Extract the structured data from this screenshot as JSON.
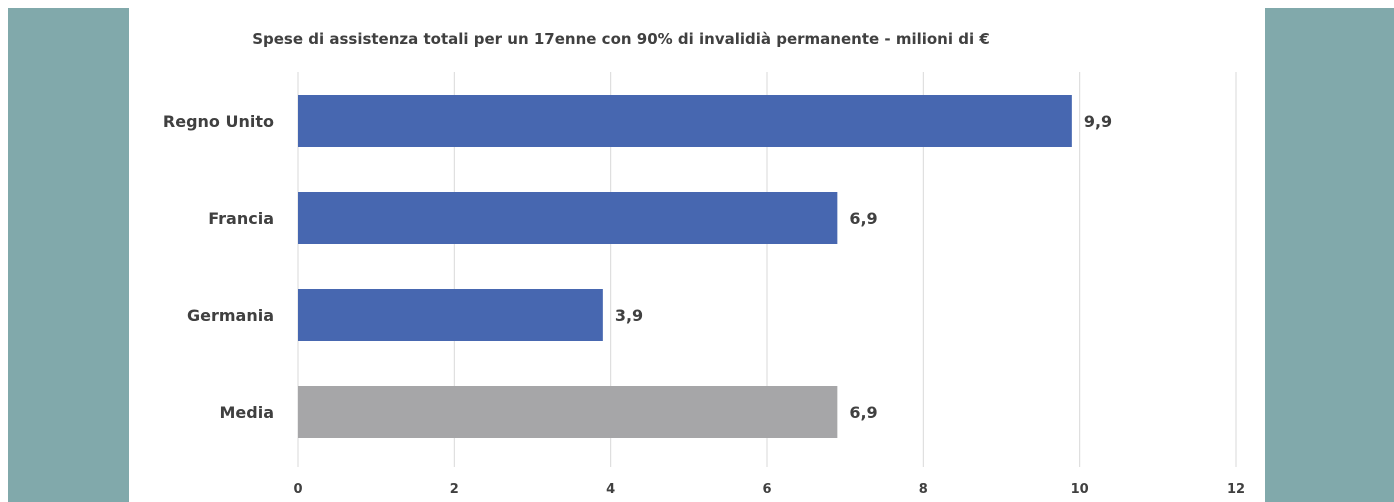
{
  "colors": {
    "side_panel": "#81a9ab",
    "country_bar": "#4767b0",
    "average_bar": "#a6a6a8",
    "grid": "#d9d9d9",
    "text": "#404040"
  },
  "chart_data": {
    "type": "bar",
    "orientation": "horizontal",
    "title": "Spese di assistenza totali per un 17enne con 90% di invalidià permanente - milioni di €",
    "categories": [
      "Regno Unito",
      "Francia",
      "Germania",
      "Media"
    ],
    "values": [
      9.9,
      6.9,
      3.9,
      6.9
    ],
    "value_labels": [
      "9,9",
      "6,9",
      "3,9",
      "6,9"
    ],
    "bar_colors": [
      "#4767b0",
      "#4767b0",
      "#4767b0",
      "#a6a6a8"
    ],
    "x_ticks": [
      0,
      2,
      4,
      6,
      8,
      10,
      12
    ],
    "xlim": [
      0,
      12
    ],
    "xlabel": "",
    "ylabel": "",
    "grid": "vertical",
    "legend": "none"
  }
}
